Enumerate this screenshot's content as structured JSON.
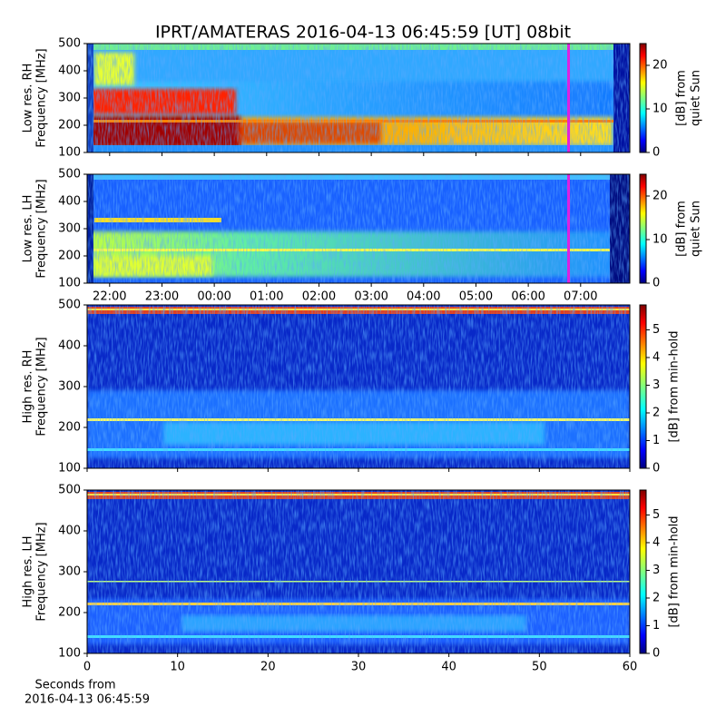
{
  "chart_data": [
    {
      "type": "heatmap",
      "title": "IPRT/AMATERAS 2016-04-13 06:45:59 [UT]   08bit",
      "y_label": [
        "Low res. RH",
        "Frequency [MHz]"
      ],
      "ylim": [
        100,
        500
      ],
      "yticks": [
        100,
        200,
        300,
        400,
        500
      ],
      "xlim": [
        21.57,
        31.94
      ],
      "cursor_x": 30.77,
      "cursor_color": "#e020e0",
      "colormap": "jet",
      "clim": [
        0,
        25
      ],
      "cticks": [
        0,
        10,
        20
      ],
      "colorbar_label": [
        "[dB] from",
        "quiet Sun"
      ]
    },
    {
      "type": "heatmap",
      "y_label": [
        "Low res. LH",
        "Frequency [MHz]"
      ],
      "ylim": [
        100,
        500
      ],
      "yticks": [
        100,
        200,
        300,
        400,
        500
      ],
      "xlim": [
        21.57,
        31.94
      ],
      "cursor_x": 30.77,
      "cursor_color": "#e020e0",
      "xticks": [
        {
          "value": 22,
          "label": "22:00"
        },
        {
          "value": 23,
          "label": "23:00"
        },
        {
          "value": 24,
          "label": "00:00"
        },
        {
          "value": 25,
          "label": "01:00"
        },
        {
          "value": 26,
          "label": "02:00"
        },
        {
          "value": 27,
          "label": "03:00"
        },
        {
          "value": 28,
          "label": "04:00"
        },
        {
          "value": 29,
          "label": "05:00"
        },
        {
          "value": 30,
          "label": "06:00"
        },
        {
          "value": 31,
          "label": "07:00"
        }
      ],
      "colormap": "jet",
      "clim": [
        0,
        25
      ],
      "cticks": [
        0,
        10,
        20
      ],
      "colorbar_label": [
        "[dB] from",
        "quiet Sun"
      ]
    },
    {
      "type": "heatmap",
      "y_label": [
        "High res. RH",
        "Frequency [MHz]"
      ],
      "ylim": [
        100,
        500
      ],
      "yticks": [
        100,
        200,
        300,
        400,
        500
      ],
      "xlim": [
        0,
        60
      ],
      "xticks": [
        0,
        10,
        20,
        30,
        40,
        50,
        60
      ],
      "colormap": "jet",
      "clim": [
        0,
        5.9
      ],
      "cticks": [
        0,
        1,
        2,
        3,
        4,
        5
      ],
      "colorbar_label": [
        "[dB] from min-hold"
      ]
    },
    {
      "type": "heatmap",
      "y_label": [
        "High res. LH",
        "Frequency [MHz]"
      ],
      "ylim": [
        100,
        500
      ],
      "yticks": [
        100,
        200,
        300,
        400,
        500
      ],
      "xlim": [
        0,
        60
      ],
      "xticks": [
        0,
        10,
        20,
        30,
        40,
        50,
        60
      ],
      "x_label": [
        "Seconds from",
        "2016-04-13 06:45:59"
      ],
      "colormap": "jet",
      "clim": [
        0,
        5.9
      ],
      "cticks": [
        0,
        1,
        2,
        3,
        4,
        5
      ],
      "colorbar_label": [
        "[dB] from min-hold"
      ]
    }
  ]
}
